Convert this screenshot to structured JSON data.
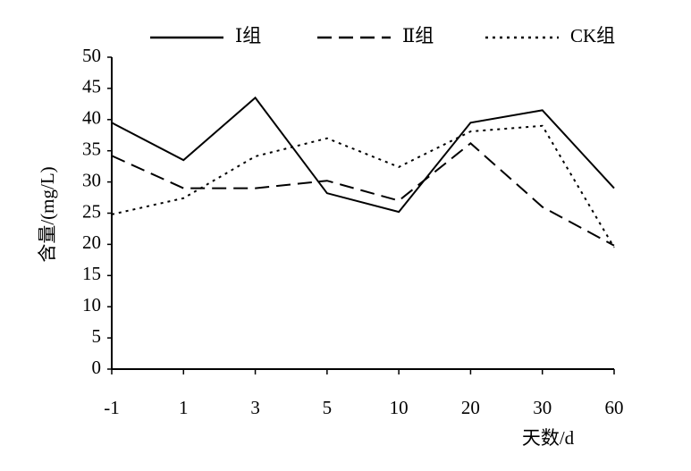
{
  "chart_data": {
    "type": "line",
    "categories": [
      "-1",
      "1",
      "3",
      "5",
      "10",
      "20",
      "30",
      "60"
    ],
    "x_label": "天数/d",
    "y_label": "含量/(mg/L)",
    "ylim": [
      0,
      50
    ],
    "yticks": [
      0,
      5,
      10,
      15,
      20,
      25,
      30,
      35,
      40,
      45,
      50
    ],
    "grid": false,
    "legend": "top",
    "series": [
      {
        "name": "Ⅰ组",
        "color": "#000000",
        "dash": "solid",
        "values": [
          39.5,
          33.5,
          43.5,
          28.2,
          25.2,
          39.5,
          41.5,
          29
        ]
      },
      {
        "name": "Ⅱ组",
        "color": "#000000",
        "dash": "dashed",
        "values": [
          34.2,
          29,
          29,
          30.2,
          27,
          36.2,
          26,
          19.8
        ]
      },
      {
        "name": "CK组",
        "color": "#000000",
        "dash": "dotted",
        "values": [
          24.8,
          27.4,
          34.1,
          37,
          32.4,
          38.1,
          39,
          19.5
        ]
      }
    ]
  }
}
